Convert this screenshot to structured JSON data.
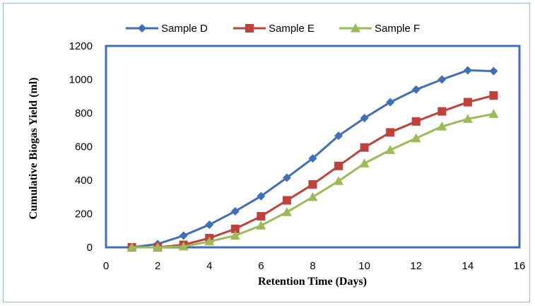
{
  "chart_data": {
    "type": "line",
    "xlabel": "Retention Time (Days)",
    "ylabel": "Cumulative Biogas Yield (ml)",
    "xlim": [
      0,
      16
    ],
    "ylim": [
      0,
      1200
    ],
    "xticks": [
      0,
      2,
      4,
      6,
      8,
      10,
      12,
      14,
      16
    ],
    "yticks": [
      0,
      200,
      400,
      600,
      800,
      1000,
      1200
    ],
    "grid": false,
    "legend_position": "top",
    "x": [
      1,
      2,
      3,
      4,
      5,
      6,
      7,
      8,
      9,
      10,
      11,
      12,
      13,
      14,
      15
    ],
    "series": [
      {
        "name": "Sample D",
        "color": "#3f6fb6",
        "marker": "diamond",
        "values": [
          0,
          20,
          70,
          135,
          215,
          305,
          415,
          530,
          665,
          770,
          865,
          940,
          1000,
          1055,
          1050
        ]
      },
      {
        "name": "Sample E",
        "color": "#c0403c",
        "marker": "square",
        "values": [
          0,
          0,
          15,
          55,
          110,
          185,
          280,
          375,
          485,
          595,
          685,
          750,
          810,
          865,
          905
        ]
      },
      {
        "name": "Sample F",
        "color": "#9bbb59",
        "marker": "triangle",
        "values": [
          0,
          0,
          5,
          35,
          70,
          130,
          210,
          300,
          395,
          500,
          580,
          650,
          720,
          765,
          795
        ]
      }
    ]
  }
}
